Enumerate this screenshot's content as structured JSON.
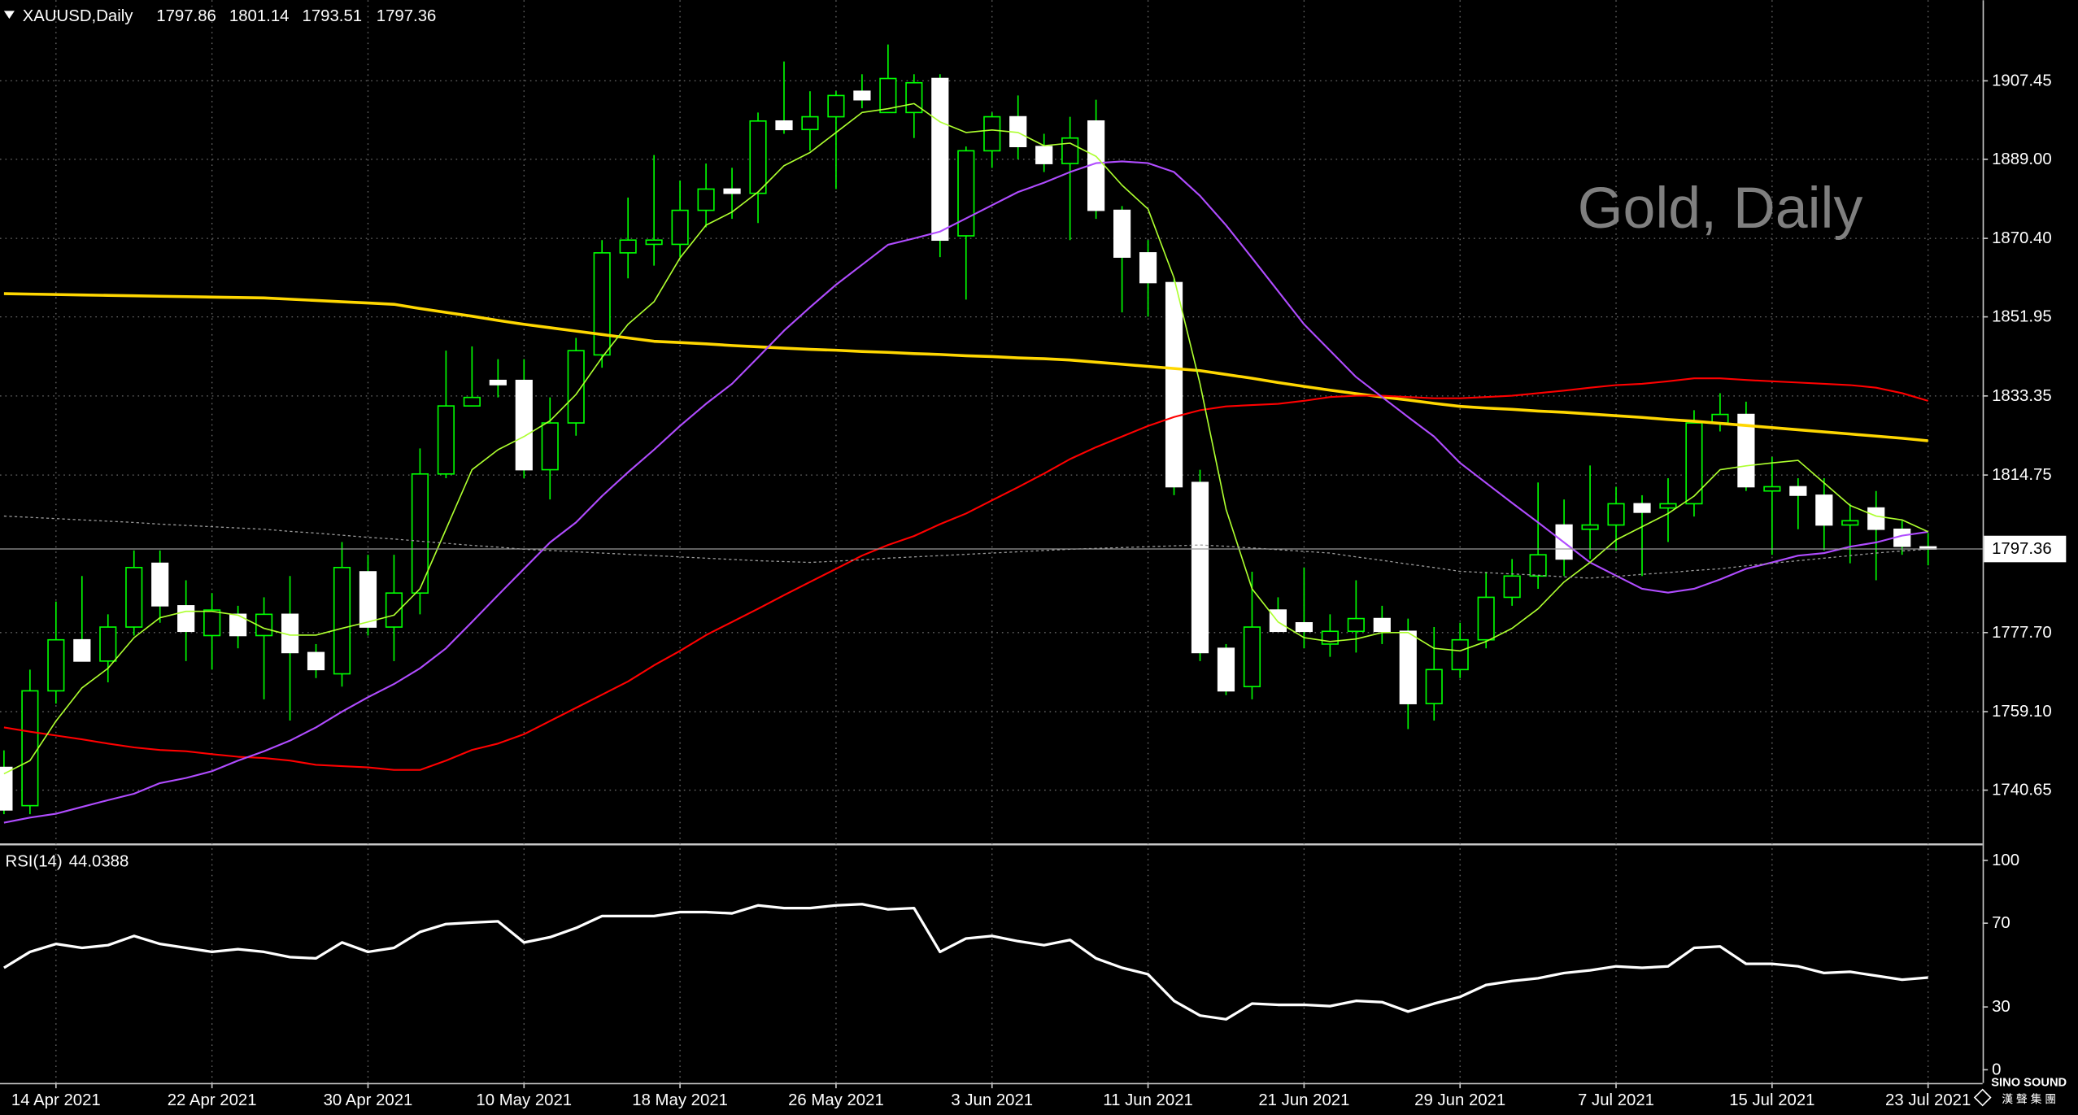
{
  "watermark": "Gold, Daily",
  "logo": {
    "name": "SINO SOUND",
    "subtitle": "漢 聲 集 團"
  },
  "chart_data": [
    {
      "type": "candlestick",
      "title": "XAUUSD,Daily",
      "categories": [
        null,
        null,
        "14 Apr 2021",
        null,
        null,
        null,
        null,
        null,
        "22 Apr 2021",
        null,
        null,
        null,
        null,
        null,
        "30 Apr 2021",
        null,
        null,
        null,
        null,
        null,
        "10 May 2021",
        null,
        null,
        null,
        null,
        null,
        "18 May 2021",
        null,
        null,
        null,
        null,
        null,
        "26 May 2021",
        null,
        null,
        null,
        null,
        null,
        "3 Jun 2021",
        null,
        null,
        null,
        null,
        null,
        "11 Jun 2021",
        null,
        null,
        null,
        null,
        null,
        "21 Jun 2021",
        null,
        null,
        null,
        null,
        null,
        "29 Jun 2021",
        null,
        null,
        null,
        null,
        null,
        "7 Jul 2021",
        null,
        null,
        null,
        null,
        null,
        "15 Jul 2021",
        null,
        null,
        null,
        null,
        null,
        "23 Jul 2021"
      ],
      "open": [
        1746,
        1737,
        1764,
        1776,
        1771,
        1779,
        1794,
        1784,
        1777,
        1782,
        1777,
        1782,
        1773,
        1768,
        1792,
        1779,
        1787,
        1815,
        1831,
        1837,
        1837,
        1816,
        1827,
        1843,
        1867,
        1869,
        1869,
        1877,
        1882,
        1881,
        1898,
        1896,
        1899,
        1905,
        1900,
        1900,
        1908,
        1871,
        1891,
        1899,
        1892,
        1888,
        1898,
        1877,
        1867,
        1860,
        1813,
        1774,
        1765,
        1783,
        1780,
        1775,
        1778,
        1781,
        1778,
        1761,
        1769,
        1776,
        1786,
        1791,
        1803,
        1802,
        1803,
        1808,
        1807,
        1808,
        1827,
        1829,
        1811,
        1812,
        1810,
        1803,
        1807,
        1802,
        1797.86
      ],
      "high": [
        1750,
        1769,
        1785,
        1791,
        1782,
        1797,
        1797,
        1790,
        1787,
        1784,
        1786,
        1791,
        1775,
        1799,
        1796,
        1796,
        1821,
        1844,
        1845,
        1842,
        1842,
        1833,
        1847,
        1870,
        1880,
        1890,
        1884,
        1888,
        1887,
        1900,
        1912,
        1905,
        1905,
        1909,
        1916,
        1909,
        1909,
        1892,
        1900,
        1904,
        1895,
        1899,
        1903,
        1878,
        1870,
        1861,
        1816,
        1775,
        1792,
        1786,
        1793,
        1782,
        1790,
        1784,
        1781,
        1779,
        1780,
        1792,
        1795,
        1813,
        1809,
        1817,
        1812,
        1810,
        1814,
        1830,
        1834,
        1832,
        1819,
        1814,
        1814,
        1808,
        1811,
        1804,
        1801.14
      ],
      "low": [
        1735,
        1735,
        1761,
        1771,
        1766,
        1777,
        1780,
        1771,
        1769,
        1774,
        1762,
        1757,
        1767,
        1765,
        1777,
        1771,
        1782,
        1814,
        1831,
        1833,
        1814,
        1809,
        1824,
        1840,
        1861,
        1864,
        1866,
        1873,
        1875,
        1874,
        1895,
        1891,
        1882,
        1901,
        1900,
        1894,
        1866,
        1856,
        1887,
        1889,
        1886,
        1870,
        1875,
        1853,
        1852,
        1810,
        1771,
        1763,
        1762,
        1778,
        1774,
        1772,
        1773,
        1775,
        1755,
        1757,
        1767,
        1774,
        1784,
        1788,
        1791,
        1795,
        1797,
        1791,
        1799,
        1805,
        1825,
        1811,
        1796,
        1802,
        1797,
        1794,
        1790,
        1796,
        1793.51
      ],
      "close": [
        1736,
        1764,
        1776,
        1771,
        1779,
        1793,
        1784,
        1778,
        1783,
        1777,
        1782,
        1773,
        1769,
        1793,
        1779,
        1787,
        1815,
        1831,
        1833,
        1836,
        1816,
        1827,
        1844,
        1867,
        1870,
        1870,
        1877,
        1882,
        1881,
        1898,
        1896,
        1899,
        1904,
        1903,
        1908,
        1907,
        1870,
        1891,
        1899,
        1892,
        1888,
        1894,
        1877,
        1866,
        1860,
        1812,
        1773,
        1764,
        1779,
        1778,
        1778,
        1778,
        1781,
        1778,
        1761,
        1769,
        1776,
        1786,
        1791,
        1796,
        1795,
        1803,
        1808,
        1806,
        1808,
        1827,
        1829,
        1812,
        1812,
        1810,
        1803,
        1804,
        1802,
        1798,
        1797.36
      ],
      "up_color": "#000000",
      "down_color": "#ffffff",
      "wick_color": "#00ff00",
      "series": [
        {
          "color": "#ffd700",
          "width": 2.2,
          "values": [
            1857.4,
            1857.3,
            1857.2,
            1857.1,
            1857.0,
            1856.9,
            1856.8,
            1856.7,
            1856.6,
            1856.5,
            1856.4,
            1856.1,
            1855.8,
            1855.5,
            1855.2,
            1854.9,
            1853.9,
            1853.0,
            1852.1,
            1851.1,
            1850.2,
            1849.4,
            1848.6,
            1847.8,
            1847.0,
            1846.2,
            1845.9,
            1845.6,
            1845.2,
            1844.9,
            1844.6,
            1844.3,
            1844.1,
            1843.8,
            1843.6,
            1843.3,
            1843.1,
            1842.8,
            1842.6,
            1842.3,
            1842.1,
            1841.8,
            1841.3,
            1840.8,
            1840.3,
            1839.8,
            1839.3,
            1838.4,
            1837.5,
            1836.5,
            1835.6,
            1834.7,
            1833.9,
            1833.1,
            1832.4,
            1831.6,
            1830.9,
            1830.5,
            1830.2,
            1829.8,
            1829.5,
            1829.1,
            1828.7,
            1828.3,
            1827.8,
            1827.4,
            1826.9,
            1826.4,
            1825.9,
            1825.4,
            1824.9,
            1824.4,
            1823.9,
            1823.4,
            1822.8
          ]
        },
        {
          "color": "#ff0000",
          "width": 1.3,
          "values": [
            1755.4,
            1754.4,
            1753.5,
            1752.6,
            1751.6,
            1750.7,
            1750.1,
            1749.8,
            1749.1,
            1748.5,
            1748.2,
            1747.6,
            1746.6,
            1746.3,
            1746.0,
            1745.4,
            1745.4,
            1747.6,
            1750.1,
            1751.6,
            1753.8,
            1756.9,
            1760.0,
            1763.1,
            1766.2,
            1770.0,
            1773.4,
            1777.1,
            1780.2,
            1783.3,
            1786.5,
            1789.6,
            1792.7,
            1795.8,
            1798.3,
            1800.4,
            1803.2,
            1805.7,
            1808.8,
            1811.9,
            1815.1,
            1818.5,
            1821.3,
            1823.8,
            1826.3,
            1828.4,
            1830.0,
            1830.9,
            1831.2,
            1831.5,
            1832.2,
            1833.1,
            1833.4,
            1833.4,
            1833.1,
            1832.8,
            1832.8,
            1833.1,
            1833.4,
            1834.0,
            1834.6,
            1835.3,
            1835.9,
            1836.2,
            1836.8,
            1837.5,
            1837.5,
            1837.1,
            1836.8,
            1836.5,
            1836.2,
            1835.9,
            1835.3,
            1834.0,
            1832.2
          ]
        },
        {
          "color": "#b04cff",
          "width": 1.3,
          "values": [
            1733.0,
            1734.2,
            1735.1,
            1736.7,
            1738.3,
            1739.8,
            1742.3,
            1743.5,
            1745.1,
            1747.6,
            1749.8,
            1752.3,
            1755.4,
            1759.1,
            1762.5,
            1765.6,
            1769.3,
            1774.0,
            1780.2,
            1786.5,
            1792.7,
            1798.9,
            1803.6,
            1809.8,
            1815.4,
            1820.7,
            1826.3,
            1831.5,
            1836.2,
            1842.4,
            1848.7,
            1854.2,
            1859.5,
            1864.2,
            1868.9,
            1870.4,
            1872.0,
            1875.1,
            1878.2,
            1881.3,
            1883.5,
            1886.0,
            1888.1,
            1888.5,
            1888.1,
            1886.0,
            1880.4,
            1873.5,
            1865.8,
            1858.0,
            1850.2,
            1844.0,
            1837.8,
            1833.1,
            1828.4,
            1823.8,
            1817.6,
            1812.9,
            1808.2,
            1803.6,
            1798.9,
            1794.2,
            1791.1,
            1788.0,
            1787.1,
            1788.0,
            1790.2,
            1792.7,
            1794.2,
            1795.8,
            1796.4,
            1797.9,
            1798.9,
            1800.5,
            1801.4
          ]
        },
        {
          "color": "#adff2f",
          "width": 1,
          "values": [
            1744.5,
            1747.6,
            1756.9,
            1764.7,
            1769.3,
            1776.5,
            1781.2,
            1782.7,
            1782.7,
            1781.8,
            1778.7,
            1777.1,
            1777.1,
            1778.7,
            1780.2,
            1781.8,
            1788.0,
            1802.0,
            1816.0,
            1820.7,
            1823.8,
            1827.5,
            1833.7,
            1842.4,
            1850.2,
            1855.5,
            1865.8,
            1873.5,
            1876.6,
            1881.3,
            1887.5,
            1890.6,
            1895.3,
            1900.0,
            1900.9,
            1902.1,
            1897.8,
            1895.3,
            1895.9,
            1895.3,
            1892.2,
            1892.8,
            1889.7,
            1882.9,
            1877.3,
            1861.1,
            1836.2,
            1806.7,
            1788.0,
            1780.2,
            1776.5,
            1775.6,
            1776.2,
            1777.7,
            1777.7,
            1774.0,
            1773.4,
            1775.6,
            1778.7,
            1783.3,
            1789.6,
            1794.2,
            1799.5,
            1802.6,
            1805.7,
            1809.8,
            1816.0,
            1816.9,
            1817.6,
            1818.2,
            1812.9,
            1807.6,
            1805.1,
            1804.2,
            1801.4
          ]
        },
        {
          "color": "#9a9a9a",
          "width": 0.8,
          "dash": true,
          "values": [
            1805.1,
            1804.8,
            1804.5,
            1804.2,
            1803.9,
            1803.6,
            1803.2,
            1802.9,
            1802.6,
            1802.3,
            1802.0,
            1801.5,
            1801.1,
            1800.6,
            1800.1,
            1799.7,
            1799.2,
            1798.7,
            1798.2,
            1797.8,
            1797.3,
            1797.0,
            1796.7,
            1796.4,
            1796.1,
            1795.8,
            1795.5,
            1795.2,
            1794.9,
            1794.6,
            1794.4,
            1794.2,
            1794.5,
            1794.8,
            1795.2,
            1795.5,
            1795.8,
            1796.1,
            1796.4,
            1796.7,
            1797.0,
            1797.3,
            1797.5,
            1797.7,
            1797.9,
            1798.1,
            1798.3,
            1798.0,
            1797.6,
            1797.2,
            1796.8,
            1796.4,
            1795.5,
            1794.7,
            1793.8,
            1793.0,
            1792.1,
            1791.8,
            1791.5,
            1791.2,
            1790.8,
            1790.5,
            1790.9,
            1791.4,
            1791.8,
            1792.3,
            1792.7,
            1793.4,
            1794.0,
            1794.6,
            1795.2,
            1795.8,
            1796.4,
            1796.9,
            1797.3
          ]
        }
      ],
      "ylim": [
        1728.2,
        1926.4
      ],
      "yticks": [
        {
          "value": 1740.65,
          "label": "1740.65"
        },
        {
          "value": 1759.1,
          "label": "1759.10"
        },
        {
          "value": 1777.7,
          "label": "1777.70"
        },
        {
          "value": 1814.75,
          "label": "1814.75"
        },
        {
          "value": 1833.35,
          "label": "1833.35"
        },
        {
          "value": 1851.95,
          "label": "1851.95"
        },
        {
          "value": 1870.4,
          "label": "1870.40"
        },
        {
          "value": 1889,
          "label": "1889.00"
        },
        {
          "value": 1907.45,
          "label": "1907.45"
        }
      ],
      "grid": true,
      "bid_line": true
    },
    {
      "type": "line",
      "title": "RSI(14)",
      "color": "#ffffff",
      "values": [
        48.7,
        56.3,
        60.1,
        58.2,
        59.5,
        63.9,
        60.1,
        58.2,
        56.3,
        57.6,
        56.3,
        53.8,
        53.2,
        60.8,
        56.3,
        58.2,
        65.8,
        69.6,
        70.3,
        70.9,
        60.8,
        63.3,
        67.7,
        73.4,
        73.4,
        73.4,
        75.3,
        75.3,
        74.7,
        78.5,
        77.2,
        77.2,
        78.5,
        79.1,
        76.6,
        77.2,
        56.3,
        62.7,
        63.9,
        61.4,
        59.5,
        62.0,
        53.2,
        48.7,
        45.6,
        32.9,
        25.9,
        24.1,
        31.6,
        31.0,
        31.0,
        30.4,
        32.9,
        32.3,
        27.8,
        31.6,
        34.8,
        40.5,
        42.4,
        43.7,
        46.2,
        47.5,
        49.4,
        48.7,
        49.4,
        58.2,
        58.9,
        50.6,
        50.6,
        49.4,
        46.2,
        46.8,
        44.9,
        43.0,
        44.0388
      ],
      "ylim": [
        -6.3,
        107
      ],
      "yticks": [
        0,
        30,
        70,
        100
      ],
      "grid": false
    }
  ]
}
